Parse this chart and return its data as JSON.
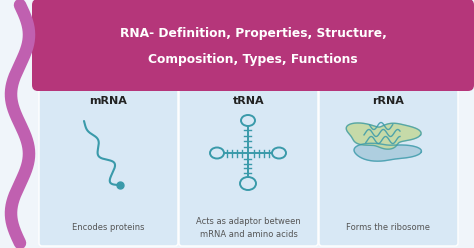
{
  "title_line1": "RNA- Definition, Properties, Structure,",
  "title_line2": "Composition, Types, Functions",
  "title_bg": "#b5367a",
  "title_text_color": "#ffffff",
  "panel_bg": "#d8e8f5",
  "bg_color": "#f0f5fa",
  "wave_color": "#c060b0",
  "rna_types": [
    "mRNA",
    "tRNA",
    "rRNA"
  ],
  "rna_descs": [
    "Encodes proteins",
    "Acts as adaptor between\nmRNA and amino acids",
    "Forms the ribosome"
  ],
  "teal": "#3a9aaa",
  "teal_dark": "#2a7a8a",
  "green_fill": "#c5d9a0",
  "blue_fill": "#aaccdd",
  "label_color": "#555555",
  "header_color": "#222222",
  "figw": 4.74,
  "figh": 2.48,
  "dpi": 100
}
